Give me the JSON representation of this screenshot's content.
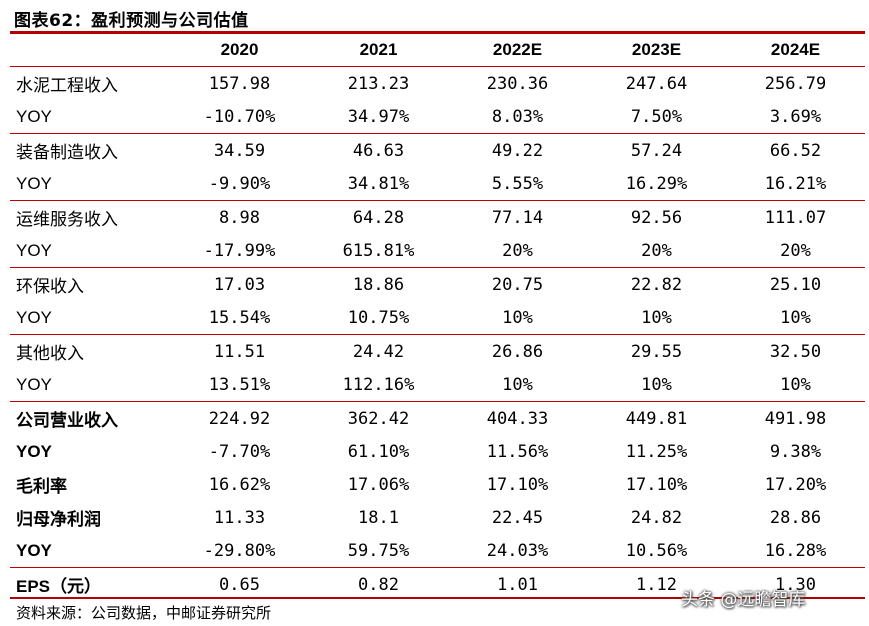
{
  "figure_title": "图表62：盈利预测与公司估值",
  "columns": [
    "",
    "2020",
    "2021",
    "2022E",
    "2023E",
    "2024E"
  ],
  "rows": [
    {
      "label": "水泥工程收入",
      "values": [
        "157.98",
        "213.23",
        "230.36",
        "247.64",
        "256.79"
      ]
    },
    {
      "label": "YOY",
      "values": [
        "-10.70%",
        "34.97%",
        "8.03%",
        "7.50%",
        "3.69%"
      ]
    },
    {
      "label": "装备制造收入",
      "values": [
        "34.59",
        "46.63",
        "49.22",
        "57.24",
        "66.52"
      ]
    },
    {
      "label": "YOY",
      "values": [
        "-9.90%",
        "34.81%",
        "5.55%",
        "16.29%",
        "16.21%"
      ]
    },
    {
      "label": "运维服务收入",
      "values": [
        "8.98",
        "64.28",
        "77.14",
        "92.56",
        "111.07"
      ]
    },
    {
      "label": "YOY",
      "values": [
        "-17.99%",
        "615.81%",
        "20%",
        "20%",
        "20%"
      ]
    },
    {
      "label": "环保收入",
      "values": [
        "17.03",
        "18.86",
        "20.75",
        "22.82",
        "25.10"
      ]
    },
    {
      "label": "YOY",
      "values": [
        "15.54%",
        "10.75%",
        "10%",
        "10%",
        "10%"
      ]
    },
    {
      "label": "其他收入",
      "values": [
        "11.51",
        "24.42",
        "26.86",
        "29.55",
        "32.50"
      ]
    },
    {
      "label": "YOY",
      "values": [
        "13.51%",
        "112.16%",
        "10%",
        "10%",
        "10%"
      ]
    },
    {
      "label": "公司营业收入",
      "values": [
        "224.92",
        "362.42",
        "404.33",
        "449.81",
        "491.98"
      ]
    },
    {
      "label": "YOY",
      "values": [
        "-7.70%",
        "61.10%",
        "11.56%",
        "11.25%",
        "9.38%"
      ]
    },
    {
      "label": "毛利率",
      "values": [
        "16.62%",
        "17.06%",
        "17.10%",
        "17.10%",
        "17.20%"
      ]
    },
    {
      "label": "归母净利润",
      "values": [
        "11.33",
        "18.1",
        "22.45",
        "24.82",
        "28.86"
      ]
    },
    {
      "label": "YOY",
      "values": [
        "-29.80%",
        "59.75%",
        "24.03%",
        "10.56%",
        "16.28%"
      ]
    },
    {
      "label": "EPS（元）",
      "values": [
        "0.65",
        "0.82",
        "1.01",
        "1.12",
        "1.30"
      ]
    }
  ],
  "source": "资料来源：公司数据，中邮证券研究所",
  "watermark": "头条 @远瞻智库",
  "colors": {
    "rule": "#b40000"
  }
}
